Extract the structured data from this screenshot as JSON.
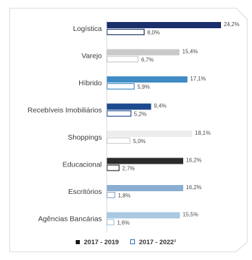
{
  "chart_data": {
    "type": "bar",
    "orientation": "horizontal",
    "categories": [
      "Logística",
      "Varejo",
      "Híbrido",
      "Recebíveis Imobiliários",
      "Shoppings",
      "Educacional",
      "Escritórios",
      "Agências Bancárias"
    ],
    "series": [
      {
        "name": "2017 - 2019",
        "values": [
          24.2,
          15.4,
          17.1,
          9.4,
          18.1,
          16.2,
          16.2,
          15.5
        ],
        "labels": [
          "24,2%",
          "15,4%",
          "17,1%",
          "9,4%",
          "18,1%",
          "16,2%",
          "16,2%",
          "15,5%"
        ],
        "colors": [
          "#1a2f6b",
          "#c9c9c9",
          "#3f8bc4",
          "#1d4a8e",
          "#ececec",
          "#2b2b2b",
          "#8aaed0",
          "#a9c8e2"
        ]
      },
      {
        "name": "2017 - 2022¹",
        "values": [
          8.0,
          6.7,
          5.9,
          5.2,
          5.0,
          2.7,
          1.8,
          1.6
        ],
        "labels": [
          "8,0%",
          "6,7%",
          "5,9%",
          "5,2%",
          "5,0%",
          "2,7%",
          "1,8%",
          "1,6%"
        ],
        "colors": [
          "#1a2f6b",
          "#c9c9c9",
          "#3f8bc4",
          "#1d4a8e",
          "#ececec",
          "#2b2b2b",
          "#8aaed0",
          "#a9c8e2"
        ],
        "style": "outline"
      }
    ],
    "title": "",
    "xlabel": "",
    "ylabel": "",
    "xlim": [
      0,
      24.2
    ],
    "grid": false,
    "legend_position": "bottom"
  },
  "legend": {
    "items": [
      {
        "marker": "■",
        "label": "2017 - 2019"
      },
      {
        "marker": "□",
        "label": "2017 - 2022¹"
      }
    ]
  }
}
